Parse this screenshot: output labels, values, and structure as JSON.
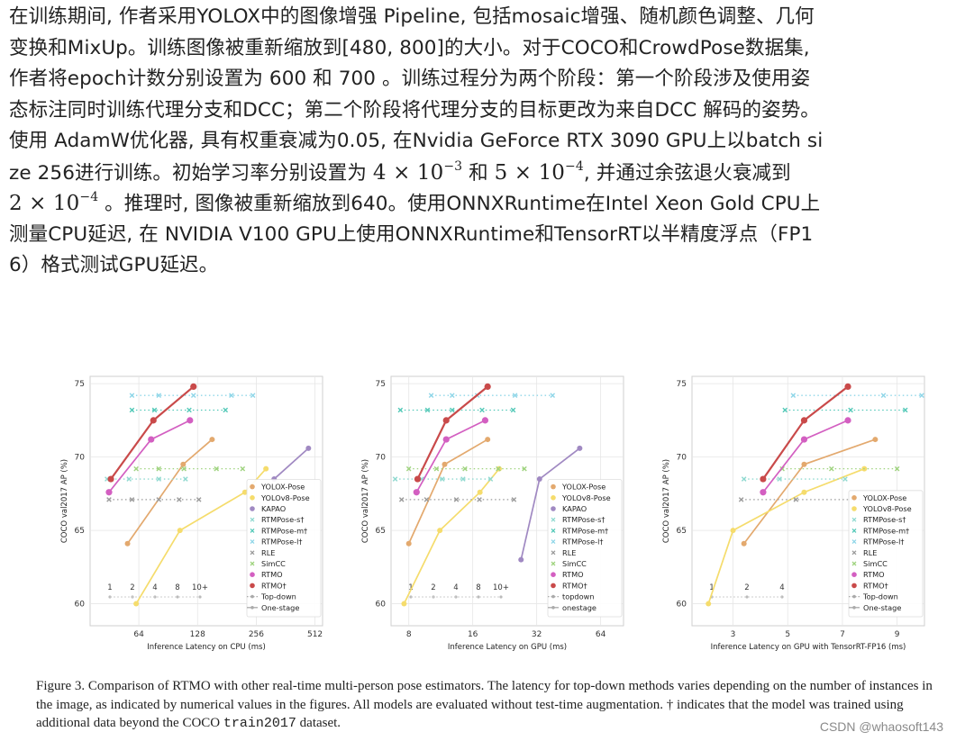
{
  "article": {
    "lines": [
      "在训练期间, 作者采用YOLOX中的图像增强 Pipeline, 包括mosaic增强、随机颜色调整、几何",
      "变换和MixUp。训练图像被重新缩放到[480, 800]的大小。对于COCO和CrowdPose数据集,",
      "作者将epoch计数分别设置为 600 和 700 。训练过程分为两个阶段：第一个阶段涉及使用姿",
      "态标注同时训练代理分支和DCC；第二个阶段将代理分支的目标更改为来自DCC 解码的姿势。",
      "使用 AdamW优化器, 具有权重衰减为0.05, 在Nvidia GeForce RTX 3090 GPU上以batch si",
      "ze 256进行训练。初始学习率分别设置为 ",
      "",
      "测量CPU延迟, 在 NVIDIA V100 GPU上使用ONNXRuntime和TensorRT以半精度浮点（FP1",
      "6）格式测试GPU延迟。"
    ],
    "line6_math_a": "4 × 10",
    "line6_exp_a": "−3",
    "line6_mid": " 和 ",
    "line6_math_b": "5 × 10",
    "line6_exp_b": "−4",
    "line6_tail": ", 并通过余弦退火衰减到",
    "line7_math": "2 × 10",
    "line7_exp": "−4",
    "line7_tail": " 。推理时, 图像被重新缩放到640。使用ONNXRuntime在Intel Xeon Gold CPU上"
  },
  "caption": {
    "part1": "Figure 3. Comparison of RTMO with other real-time multi-person pose estimators. The latency for top-down methods varies depending on the number of instances in the image, as indicated by numerical values in the figures. All models are evaluated without test-time augmentation. † indicates that the model was trained using additional data beyond the COCO ",
    "code": "train2017",
    "part2": " dataset."
  },
  "watermark": "CSDN @whaosoft143",
  "colors": {
    "yolox": "#e3a96e",
    "yolov8": "#f5dc6c",
    "kapao": "#a089c2",
    "rtmpose_s": "#8fd9d0",
    "rtmpose_m": "#54c9b8",
    "rtmpose_l": "#8fd6e8",
    "rle": "#9a9a9a",
    "simcc": "#9fd37f",
    "rtmo": "#d35fc1",
    "rtmo_dag": "#c94a4a"
  },
  "chart_data": [
    {
      "type": "line",
      "xlabel": "Inference Latency on CPU (ms)",
      "ylabel": "COCO val2017 AP (%)",
      "xscale": "log2",
      "xticks": [
        64,
        128,
        256,
        512
      ],
      "xlim": [
        36,
        560
      ],
      "ylim": [
        58.5,
        75.5
      ],
      "yticks": [
        60,
        65,
        70,
        75
      ],
      "grid": true,
      "legend_position": "lower-right",
      "instance_labels": [
        "1",
        "2",
        "4",
        "8",
        "10+"
      ],
      "series": [
        {
          "name": "YOLOX-Pose",
          "color_key": "yolox",
          "style": "solid",
          "points": [
            [
              56,
              64.1
            ],
            [
              108,
              69.5
            ],
            [
              152,
              71.2
            ]
          ]
        },
        {
          "name": "YOLOv8-Pose",
          "color_key": "yolov8",
          "style": "solid",
          "points": [
            [
              62,
              60
            ],
            [
              104,
              65
            ],
            [
              224,
              67.6
            ],
            [
              287,
              69.2
            ]
          ]
        },
        {
          "name": "KAPAO",
          "color_key": "kapao",
          "style": "solid",
          "points": [
            [
              316,
              68.5
            ],
            [
              474,
              70.6
            ]
          ]
        },
        {
          "name": "RTMPose-s†",
          "color_key": "rtmpose_s",
          "style": "dotted",
          "points": [
            [
              44,
              68.5
            ],
            [
              57,
              68.5
            ],
            [
              81,
              68.5
            ],
            [
              111,
              68.5
            ]
          ]
        },
        {
          "name": "RTMPose-m†",
          "color_key": "rtmpose_m",
          "style": "dotted",
          "points": [
            [
              59,
              73.2
            ],
            [
              77,
              73.2
            ],
            [
              116,
              73.2
            ],
            [
              178,
              73.2
            ]
          ]
        },
        {
          "name": "RTMPose-l†",
          "color_key": "rtmpose_l",
          "style": "dotted",
          "points": [
            [
              59,
              74.2
            ],
            [
              81,
              74.2
            ],
            [
              122,
              74.2
            ],
            [
              191,
              74.2
            ],
            [
              246,
              74.2
            ]
          ]
        },
        {
          "name": "RLE",
          "color_key": "rle",
          "style": "dotted",
          "points": [
            [
              45,
              67.1
            ],
            [
              59,
              67.1
            ],
            [
              81,
              67.1
            ],
            [
              103,
              67.1
            ],
            [
              130,
              67.1
            ]
          ]
        },
        {
          "name": "SimCC",
          "color_key": "simcc",
          "style": "dotted",
          "points": [
            [
              62,
              69.2
            ],
            [
              81,
              69.2
            ],
            [
              109,
              69.2
            ],
            [
              160,
              69.2
            ],
            [
              218,
              69.2
            ]
          ]
        },
        {
          "name": "RTMO",
          "color_key": "rtmo",
          "style": "solid",
          "points": [
            [
              45,
              67.6
            ],
            [
              74,
              71.2
            ],
            [
              117,
              72.5
            ]
          ]
        },
        {
          "name": "RTMO†",
          "color_key": "rtmo_dag",
          "style": "solid",
          "points": [
            [
              46,
              68.5
            ],
            [
              76,
              72.5
            ],
            [
              122,
              74.8
            ]
          ]
        }
      ],
      "legend_entries": [
        "YOLOX-Pose",
        "YOLOv8-Pose",
        "KAPAO",
        "RTMPose-s†",
        "RTMPose-m†",
        "RTMPose-l†",
        "RLE",
        "SimCC",
        "RTMO",
        "RTMO†",
        "Top-down",
        "One-stage"
      ]
    },
    {
      "type": "line",
      "xlabel": "Inference Latency on GPU (ms)",
      "ylabel": "COCO val2017 AP (%)",
      "xscale": "log2",
      "xticks": [
        8,
        16,
        32,
        64
      ],
      "xlim": [
        6.6,
        82
      ],
      "ylim": [
        58.5,
        75.5
      ],
      "yticks": [
        60,
        65,
        70,
        75
      ],
      "grid": true,
      "legend_position": "lower-right",
      "instance_labels": [
        "1",
        "2",
        "4",
        "8",
        "10+"
      ],
      "series": [
        {
          "name": "YOLOX-Pose",
          "color_key": "yolox",
          "style": "solid",
          "points": [
            [
              8,
              64.1
            ],
            [
              11.8,
              69.5
            ],
            [
              18.8,
              71.2
            ]
          ]
        },
        {
          "name": "YOLOv8-Pose",
          "color_key": "yolov8",
          "style": "solid",
          "points": [
            [
              7.6,
              60
            ],
            [
              11.2,
              65
            ],
            [
              17.3,
              67.6
            ],
            [
              21.3,
              69.2
            ]
          ]
        },
        {
          "name": "KAPAO",
          "color_key": "kapao",
          "style": "solid",
          "points": [
            [
              27,
              63
            ],
            [
              33,
              68.5
            ],
            [
              51,
              70.6
            ]
          ]
        },
        {
          "name": "RTMPose-s†",
          "color_key": "rtmpose_s",
          "style": "dotted",
          "points": [
            [
              6.9,
              68.5
            ],
            [
              9.2,
              68.5
            ],
            [
              11.5,
              68.5
            ],
            [
              14.4,
              68.5
            ],
            [
              19.4,
              68.5
            ]
          ]
        },
        {
          "name": "RTMPose-m†",
          "color_key": "rtmpose_m",
          "style": "dotted",
          "points": [
            [
              7.3,
              73.2
            ],
            [
              9.8,
              73.2
            ],
            [
              12.8,
              73.2
            ],
            [
              17.7,
              73.2
            ],
            [
              24.8,
              73.2
            ]
          ]
        },
        {
          "name": "RTMPose-l†",
          "color_key": "rtmpose_l",
          "style": "dotted",
          "points": [
            [
              10.2,
              74.2
            ],
            [
              12.8,
              74.2
            ],
            [
              16.8,
              74.2
            ],
            [
              25.3,
              74.2
            ],
            [
              38,
              74.2
            ]
          ]
        },
        {
          "name": "RLE",
          "color_key": "rle",
          "style": "dotted",
          "points": [
            [
              7.4,
              67.1
            ],
            [
              9.7,
              67.1
            ],
            [
              13.4,
              67.1
            ],
            [
              17.2,
              67.1
            ],
            [
              25,
              67.1
            ]
          ]
        },
        {
          "name": "SimCC",
          "color_key": "simcc",
          "style": "dotted",
          "points": [
            [
              8,
              69.2
            ],
            [
              10.8,
              69.2
            ],
            [
              14.7,
              69.2
            ],
            [
              21.1,
              69.2
            ],
            [
              28,
              69.2
            ]
          ]
        },
        {
          "name": "RTMO",
          "color_key": "rtmo",
          "style": "solid",
          "points": [
            [
              8.7,
              67.6
            ],
            [
              12,
              71.2
            ],
            [
              18.3,
              72.5
            ]
          ]
        },
        {
          "name": "RTMO†",
          "color_key": "rtmo_dag",
          "style": "solid",
          "points": [
            [
              8.8,
              68.5
            ],
            [
              12,
              72.5
            ],
            [
              18.8,
              74.8
            ]
          ]
        }
      ],
      "legend_entries": [
        "YOLOX-Pose",
        "YOLOv8-Pose",
        "KAPAO",
        "RTMPose-s†",
        "RTMPose-m†",
        "RTMPose-l†",
        "RLE",
        "SimCC",
        "RTMO",
        "RTMO†",
        "topdown",
        "onestage"
      ]
    },
    {
      "type": "line",
      "xlabel": "Inference Latency on GPU with TensorRT-FP16 (ms)",
      "ylabel": "COCO val2017 AP (%)",
      "xscale": "linear",
      "xticks": [
        3,
        5,
        7,
        9
      ],
      "xlim": [
        1.5,
        10
      ],
      "ylim": [
        58.5,
        75.5
      ],
      "yticks": [
        60,
        65,
        70,
        75
      ],
      "grid": true,
      "legend_position": "lower-right",
      "instance_labels": [
        "1",
        "2",
        "4"
      ],
      "series": [
        {
          "name": "YOLOX-Pose",
          "color_key": "yolox",
          "style": "solid",
          "points": [
            [
              3.4,
              64.1
            ],
            [
              5.6,
              69.5
            ],
            [
              8.2,
              71.2
            ]
          ]
        },
        {
          "name": "YOLOv8-Pose",
          "color_key": "yolov8",
          "style": "solid",
          "points": [
            [
              2.1,
              60
            ],
            [
              3.0,
              65
            ],
            [
              5.6,
              67.6
            ],
            [
              7.8,
              69.2
            ]
          ]
        },
        {
          "name": "RTMPose-s†",
          "color_key": "rtmpose_s",
          "style": "dotted",
          "points": [
            [
              3.4,
              68.5
            ],
            [
              4.7,
              68.5
            ],
            [
              7.1,
              68.5
            ]
          ]
        },
        {
          "name": "RTMPose-m†",
          "color_key": "rtmpose_m",
          "style": "dotted",
          "points": [
            [
              4.9,
              73.2
            ],
            [
              7.3,
              73.2
            ],
            [
              9.3,
              73.2
            ]
          ]
        },
        {
          "name": "RTMPose-l†",
          "color_key": "rtmpose_l",
          "style": "dotted",
          "points": [
            [
              5.2,
              74.2
            ],
            [
              8.5,
              74.2
            ],
            [
              9.9,
              74.2
            ]
          ]
        },
        {
          "name": "RLE",
          "color_key": "rle",
          "style": "dotted",
          "points": [
            [
              3.3,
              67.1
            ],
            [
              5.3,
              67.1
            ],
            [
              8.1,
              67.1
            ]
          ]
        },
        {
          "name": "SimCC",
          "color_key": "simcc",
          "style": "dotted",
          "points": [
            [
              4.8,
              69.2
            ],
            [
              6.6,
              69.2
            ],
            [
              9.0,
              69.2
            ]
          ]
        },
        {
          "name": "RTMO",
          "color_key": "rtmo",
          "style": "solid",
          "points": [
            [
              4.1,
              67.6
            ],
            [
              5.6,
              71.2
            ],
            [
              7.2,
              72.5
            ]
          ]
        },
        {
          "name": "RTMO†",
          "color_key": "rtmo_dag",
          "style": "solid",
          "points": [
            [
              4.1,
              68.5
            ],
            [
              5.6,
              72.5
            ],
            [
              7.2,
              74.8
            ]
          ]
        }
      ],
      "legend_entries": [
        "YOLOX-Pose",
        "YOLOv8-Pose",
        "RTMPose-s†",
        "RTMPose-m†",
        "RTMPose-l†",
        "RLE",
        "SimCC",
        "RTMO",
        "RTMO†",
        "Top-down",
        "One-stage"
      ]
    }
  ]
}
